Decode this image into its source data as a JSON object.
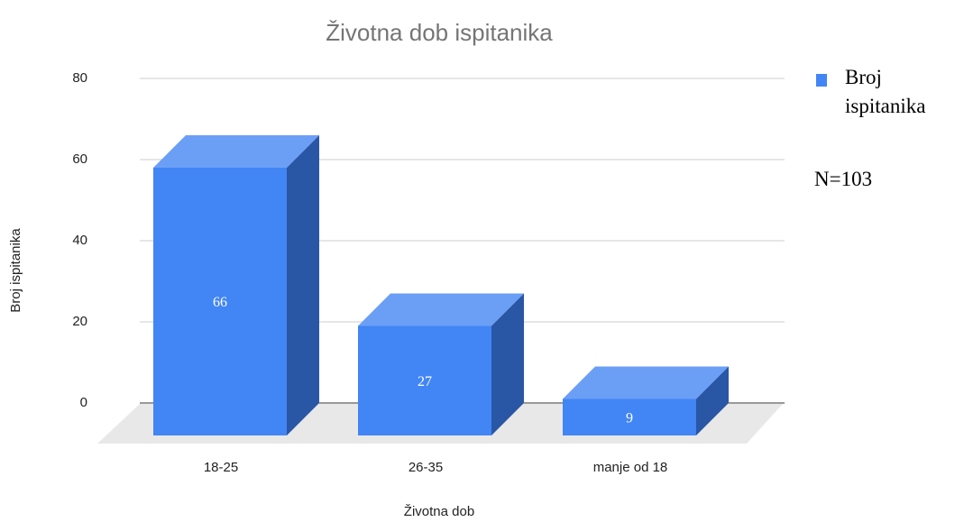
{
  "chart_data": {
    "type": "bar3d",
    "title": "Životna dob ispitanika",
    "x_label": "Životna dob",
    "y_label": "Broj ispitanika",
    "categories": [
      "18-25",
      "26-35",
      "manje od 18"
    ],
    "series": [
      {
        "name": "Broj ispitanika",
        "color": "#4285f4",
        "values": [
          66,
          27,
          9
        ]
      }
    ],
    "ylim": [
      0,
      80
    ],
    "yticks": [
      0,
      20,
      40,
      60,
      80
    ],
    "grid": true,
    "legend": "right",
    "annotation": "N=103"
  }
}
